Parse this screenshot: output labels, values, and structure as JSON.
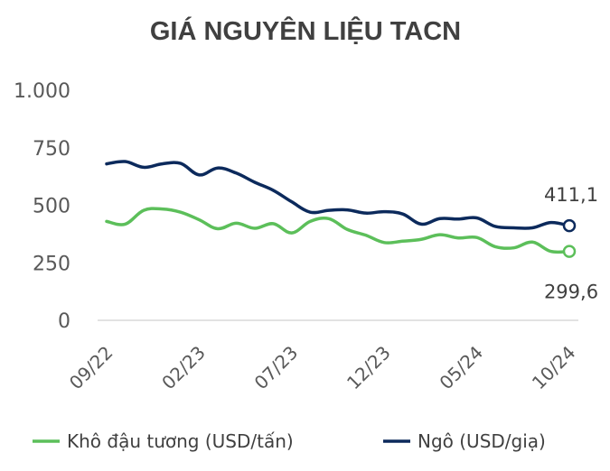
{
  "chart_data": {
    "type": "line",
    "title": "GIÁ NGUYÊN LIỆU TACN",
    "xlabel": "",
    "ylabel": "",
    "ylim": [
      0,
      1000
    ],
    "yticks": [
      {
        "value": 0,
        "label": "0"
      },
      {
        "value": 250,
        "label": "250"
      },
      {
        "value": 500,
        "label": "500"
      },
      {
        "value": 750,
        "label": "750"
      },
      {
        "value": 1000,
        "label": "1.000"
      }
    ],
    "x": [
      "09/22",
      "10/22",
      "11/22",
      "12/22",
      "01/23",
      "02/23",
      "03/23",
      "04/23",
      "05/23",
      "06/23",
      "07/23",
      "08/23",
      "09/23",
      "10/23",
      "11/23",
      "12/23",
      "01/24",
      "02/24",
      "03/24",
      "04/24",
      "05/24",
      "06/24",
      "07/24",
      "08/24",
      "09/24",
      "10/24"
    ],
    "xtick_labels": [
      {
        "index": 0,
        "label": "09/22"
      },
      {
        "index": 5,
        "label": "02/23"
      },
      {
        "index": 10,
        "label": "07/23"
      },
      {
        "index": 15,
        "label": "12/23"
      },
      {
        "index": 20,
        "label": "05/24"
      },
      {
        "index": 25,
        "label": "10/24"
      }
    ],
    "grid": false,
    "legend_position": "bottom",
    "series": [
      {
        "name": "Khô đậu tương (USD/tấn)",
        "color": "#5cbf5a",
        "values": [
          430,
          418,
          478,
          484,
          470,
          437,
          398,
          422,
          400,
          420,
          380,
          430,
          442,
          395,
          370,
          338,
          344,
          352,
          372,
          358,
          360,
          320,
          315,
          340,
          299.6,
          299.6
        ],
        "end_label": "299,6"
      },
      {
        "name": "Ngô (USD/giạ)",
        "color": "#0c2a5c",
        "values": [
          680,
          690,
          665,
          680,
          682,
          632,
          662,
          640,
          600,
          565,
          515,
          470,
          478,
          480,
          466,
          472,
          462,
          418,
          442,
          440,
          445,
          408,
          402,
          402,
          425,
          411.1
        ],
        "end_label": "411,1"
      }
    ]
  }
}
